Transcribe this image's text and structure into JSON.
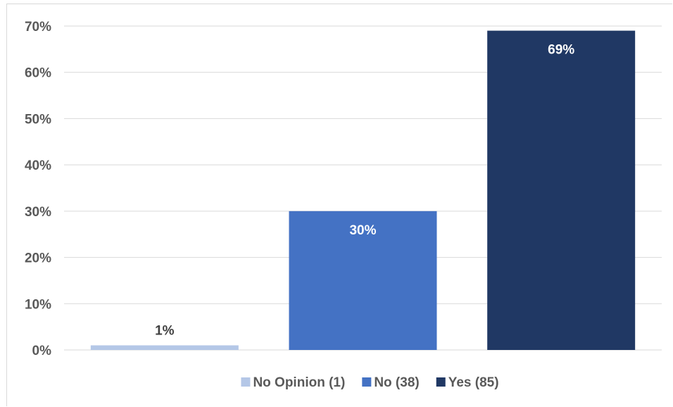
{
  "chart_data": {
    "type": "bar",
    "categories": [
      "No Opinion (1)",
      "No (38)",
      "Yes (85)"
    ],
    "values": [
      1,
      30,
      69
    ],
    "data_labels": [
      "1%",
      "30%",
      "69%"
    ],
    "colors": [
      "#b4c7e7",
      "#4472c4",
      "#203864"
    ],
    "label_colors": [
      "#404040",
      "#ffffff",
      "#ffffff"
    ],
    "title": "",
    "xlabel": "",
    "ylabel": "",
    "ylim": [
      0,
      70
    ],
    "yticks": [
      0,
      10,
      20,
      30,
      40,
      50,
      60,
      70
    ],
    "ytick_labels": [
      "0%",
      "10%",
      "20%",
      "30%",
      "40%",
      "50%",
      "60%",
      "70%"
    ],
    "grid": true,
    "gridline_color": "#d9d9d9",
    "legend_position": "bottom",
    "legend": [
      {
        "label": "No Opinion (1)",
        "color": "#b4c7e7"
      },
      {
        "label": "No (38)",
        "color": "#4472c4"
      },
      {
        "label": "Yes (85)",
        "color": "#203864"
      }
    ]
  }
}
